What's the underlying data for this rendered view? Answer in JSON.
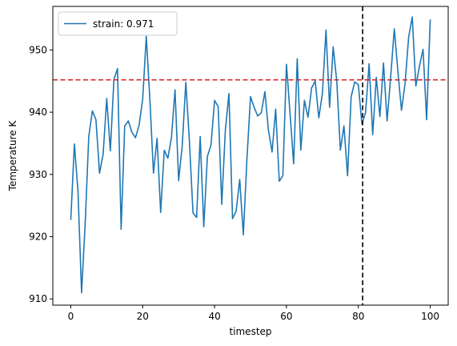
{
  "chart_data": {
    "type": "line",
    "title": "",
    "xlabel": "timestep",
    "ylabel": "Temperature K",
    "xlim": [
      -5,
      105
    ],
    "ylim": [
      909,
      957
    ],
    "xticks": [
      0,
      20,
      40,
      60,
      80,
      100
    ],
    "yticks": [
      910,
      920,
      930,
      940,
      950
    ],
    "grid": false,
    "legend_position": "upper-left",
    "series": [
      {
        "name": "strain: 0.971",
        "color": "#1f77b4",
        "x": [
          0,
          1,
          2,
          3,
          4,
          5,
          6,
          7,
          8,
          9,
          10,
          11,
          12,
          13,
          14,
          15,
          16,
          17,
          18,
          19,
          20,
          21,
          22,
          23,
          24,
          25,
          26,
          27,
          28,
          29,
          30,
          31,
          32,
          33,
          34,
          35,
          36,
          37,
          38,
          39,
          40,
          41,
          42,
          43,
          44,
          45,
          46,
          47,
          48,
          49,
          50,
          51,
          52,
          53,
          54,
          55,
          56,
          57,
          58,
          59,
          60,
          61,
          62,
          63,
          64,
          65,
          66,
          67,
          68,
          69,
          70,
          71,
          72,
          73,
          74,
          75,
          76,
          77,
          78,
          79,
          80,
          81,
          82,
          83,
          84,
          85,
          86,
          87,
          88,
          89,
          90,
          91,
          92,
          93,
          94,
          95,
          96,
          97,
          98,
          99,
          100
        ],
        "y": [
          922.7,
          934.9,
          927.3,
          911.0,
          922.1,
          936.1,
          940.2,
          938.8,
          930.2,
          933.3,
          942.2,
          933.8,
          945.3,
          947.0,
          921.2,
          937.8,
          938.6,
          936.8,
          935.9,
          937.9,
          942.1,
          952.2,
          942.1,
          930.2,
          935.8,
          923.9,
          933.9,
          932.6,
          935.9,
          943.6,
          929.0,
          934.6,
          944.8,
          935.4,
          923.8,
          923.1,
          936.1,
          921.6,
          932.9,
          934.7,
          941.9,
          940.9,
          925.2,
          937.1,
          943.0,
          922.9,
          924.1,
          929.2,
          920.3,
          932.4,
          942.5,
          940.8,
          939.4,
          939.9,
          943.3,
          937.1,
          933.6,
          940.5,
          928.9,
          929.8,
          947.7,
          939.8,
          931.7,
          948.6,
          933.9,
          941.9,
          939.2,
          943.9,
          945.0,
          939.1,
          943.0,
          953.2,
          940.8,
          950.5,
          945.0,
          933.9,
          937.8,
          929.8,
          942.5,
          944.9,
          944.4,
          938.1,
          939.9,
          947.8,
          936.4,
          945.6,
          939.3,
          947.9,
          938.6,
          945.7,
          953.4,
          946.6,
          940.3,
          944.6,
          952.1,
          955.3,
          944.2,
          947.4,
          950.1,
          938.8,
          954.9
        ]
      }
    ],
    "reference_lines": [
      {
        "orientation": "horizontal",
        "value": 945.2,
        "color": "#d62728",
        "style": "dashed"
      },
      {
        "orientation": "vertical",
        "value": 81.2,
        "color": "#000000",
        "style": "dashed"
      }
    ]
  }
}
